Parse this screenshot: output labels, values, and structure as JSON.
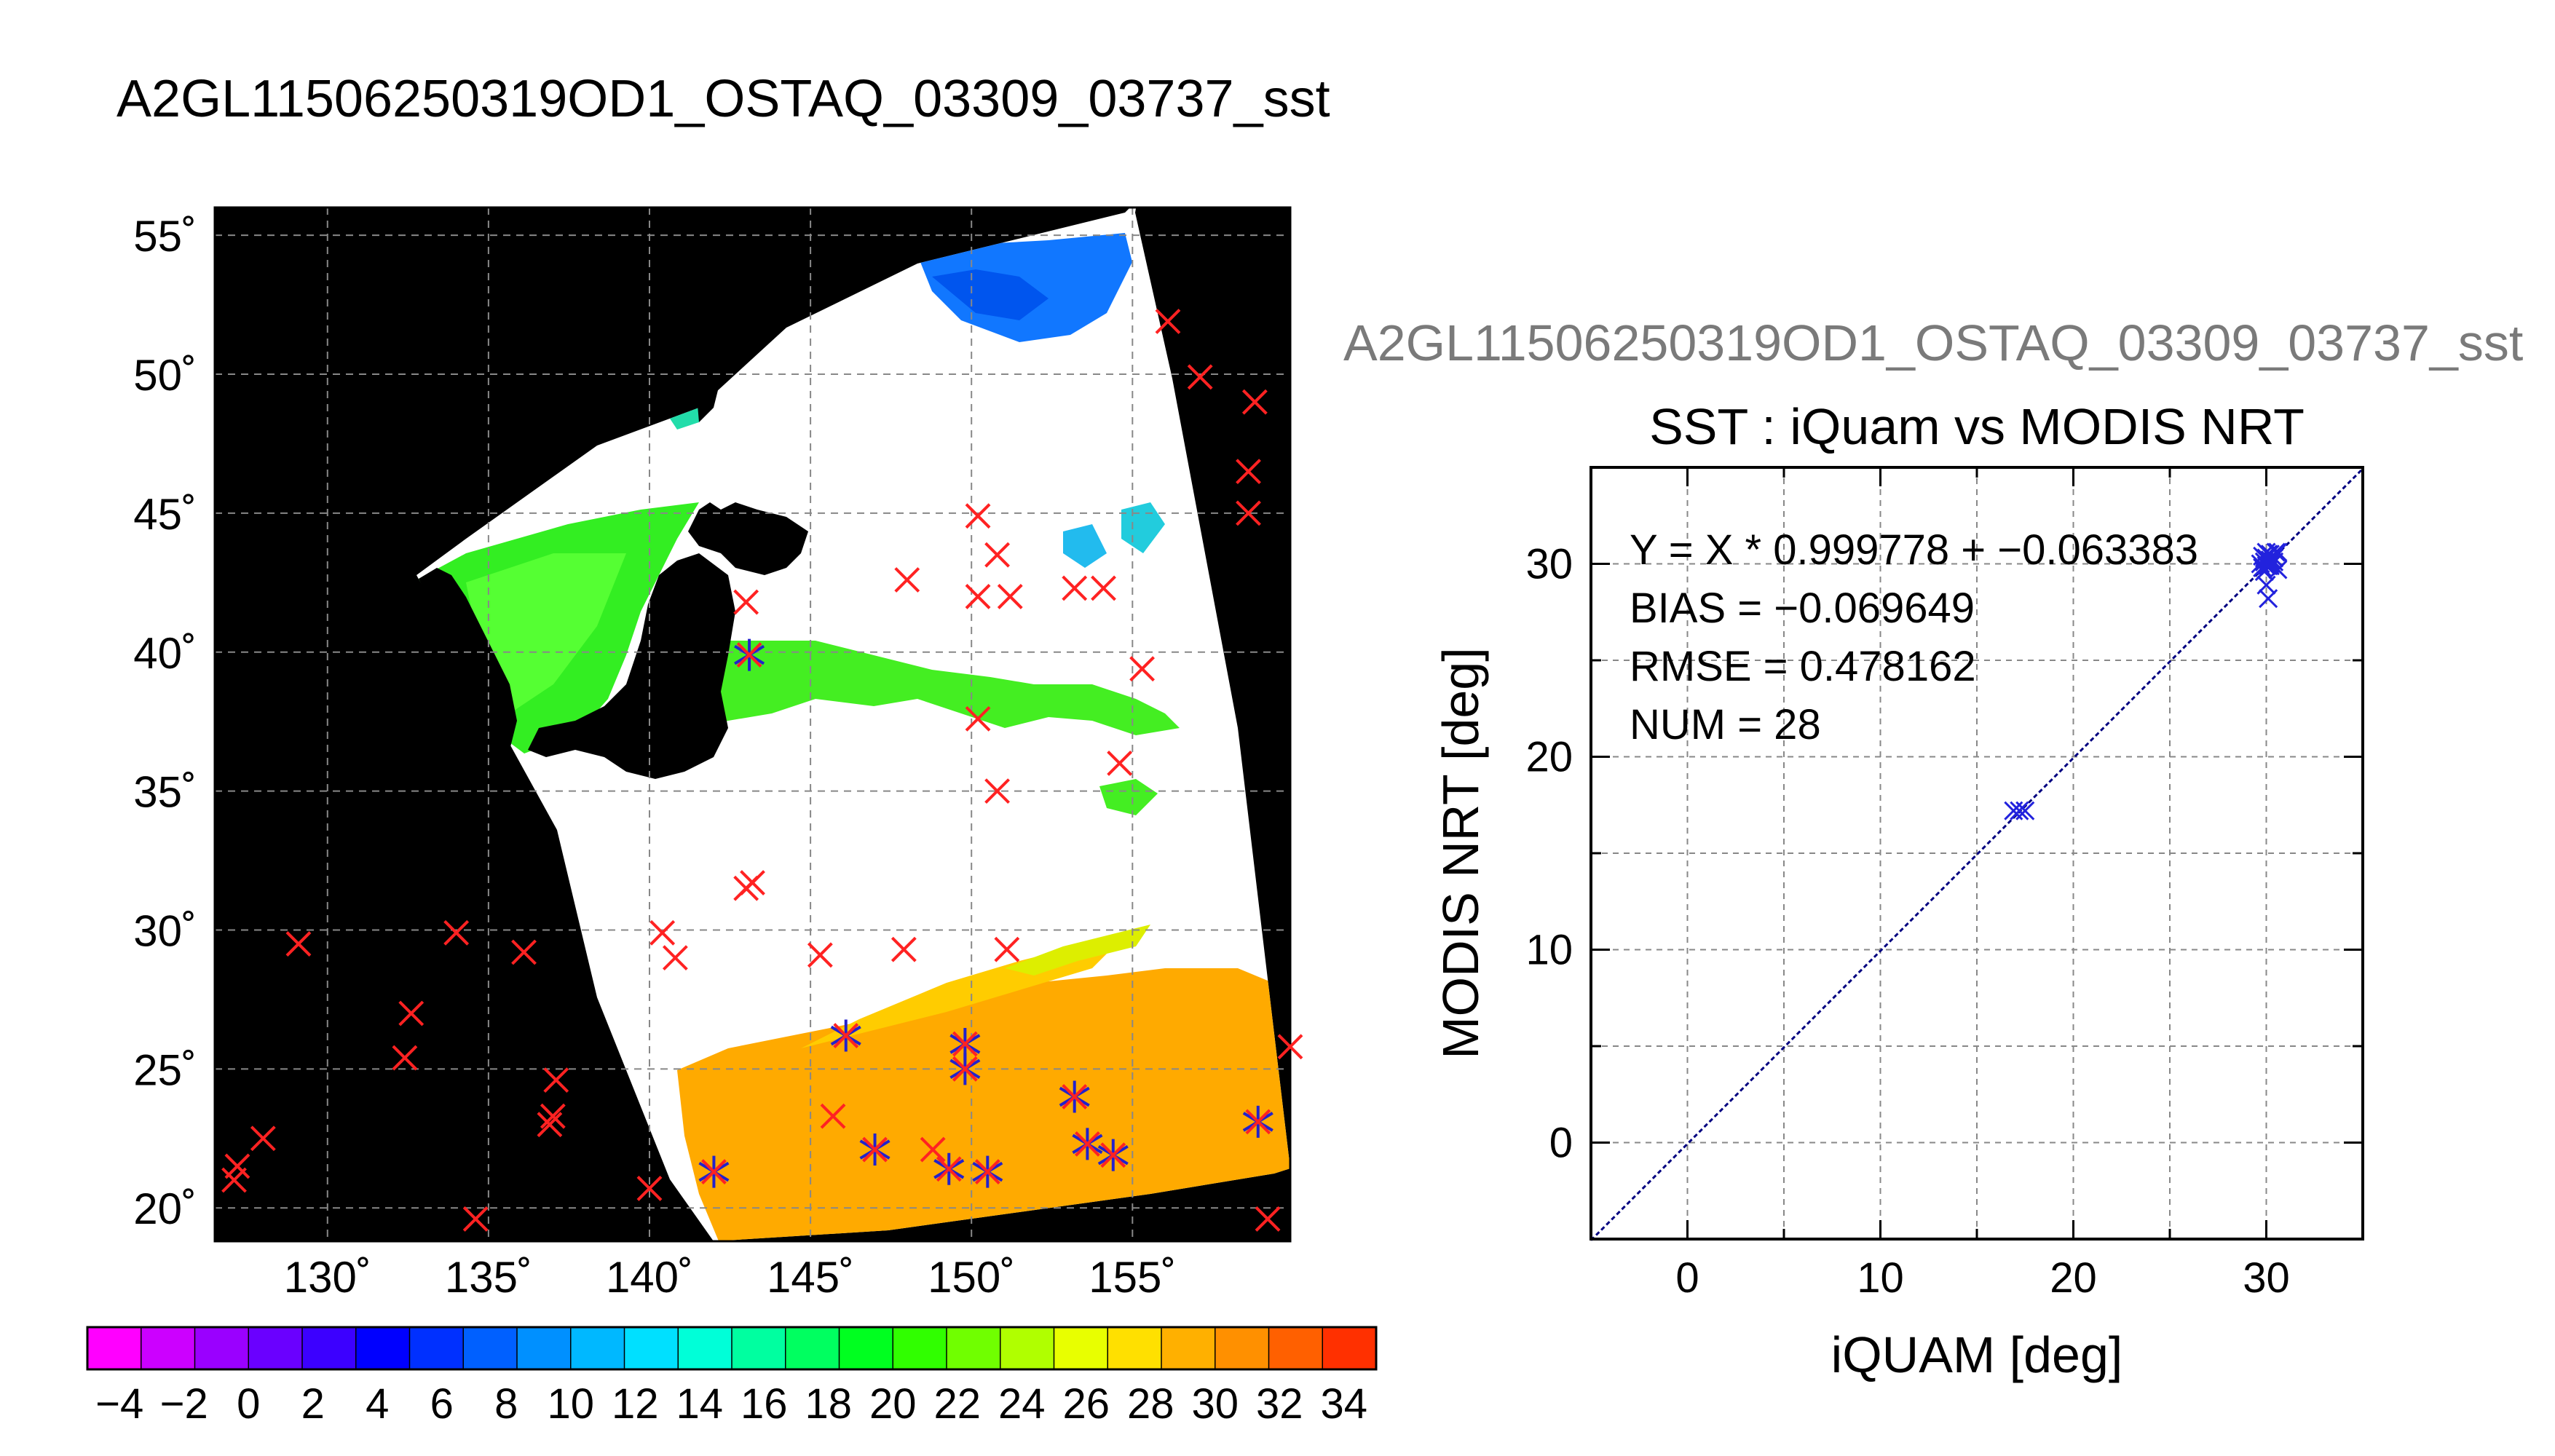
{
  "page": {
    "title": "A2GL11506250319OD1_OSTAQ_03309_03737_sst"
  },
  "map": {
    "lat_labels": [
      "20˚",
      "25˚",
      "30˚",
      "35˚",
      "40˚",
      "45˚",
      "50˚",
      "55˚"
    ],
    "lon_labels": [
      "130˚",
      "135˚",
      "140˚",
      "145˚",
      "150˚",
      "155˚"
    ],
    "lat_values": [
      20,
      25,
      30,
      35,
      40,
      45,
      50,
      55
    ],
    "lon_values": [
      130,
      135,
      140,
      145,
      150,
      155
    ],
    "lon_range": [
      126.5,
      159.9
    ],
    "lat_range": [
      18.8,
      56.0
    ],
    "colorbar": {
      "range": [
        -5,
        35
      ],
      "tick_labels": [
        "−4",
        "−2",
        "0",
        "2",
        "4",
        "6",
        "8",
        "10",
        "12",
        "14",
        "16",
        "18",
        "20",
        "22",
        "24",
        "26",
        "28",
        "30",
        "32",
        "34"
      ],
      "tick_values": [
        -4,
        -2,
        0,
        2,
        4,
        6,
        8,
        10,
        12,
        14,
        16,
        18,
        20,
        22,
        24,
        26,
        28,
        30,
        32,
        34
      ],
      "colors": [
        "#ff00ff",
        "#cc00ff",
        "#9a00ff",
        "#6a00ff",
        "#3c00ff",
        "#0000ff",
        "#0030ff",
        "#0060ff",
        "#0090ff",
        "#00b8ff",
        "#00e0ff",
        "#00ffd8",
        "#00ffa0",
        "#00ff60",
        "#00ff20",
        "#30ff00",
        "#70ff00",
        "#b0ff00",
        "#e8ff00",
        "#ffe000",
        "#ffb000",
        "#ff9000",
        "#ff6000",
        "#ff3000"
      ]
    },
    "markers_red": [
      [
        156.1,
        51.9
      ],
      [
        157.1,
        49.9
      ],
      [
        158.8,
        49.0
      ],
      [
        158.6,
        46.5
      ],
      [
        158.6,
        45.0
      ],
      [
        150.2,
        44.9
      ],
      [
        150.8,
        43.5
      ],
      [
        148.0,
        42.6
      ],
      [
        150.2,
        42.0
      ],
      [
        151.2,
        42.0
      ],
      [
        153.2,
        42.3
      ],
      [
        154.1,
        42.3
      ],
      [
        143.0,
        41.8
      ],
      [
        155.3,
        39.4
      ],
      [
        150.2,
        37.6
      ],
      [
        154.6,
        36.0
      ],
      [
        150.8,
        35.0
      ],
      [
        143.2,
        31.7
      ],
      [
        143.0,
        31.5
      ],
      [
        140.4,
        29.9
      ],
      [
        140.8,
        29.0
      ],
      [
        145.3,
        29.1
      ],
      [
        147.9,
        29.3
      ],
      [
        151.1,
        29.3
      ],
      [
        129.1,
        29.5
      ],
      [
        134.0,
        29.9
      ],
      [
        136.1,
        29.2
      ],
      [
        132.6,
        27.0
      ],
      [
        132.4,
        25.4
      ],
      [
        137.1,
        24.6
      ],
      [
        137.0,
        23.3
      ],
      [
        136.9,
        23.0
      ],
      [
        128.0,
        22.5
      ],
      [
        127.2,
        21.5
      ],
      [
        127.1,
        21.0
      ],
      [
        140.0,
        20.7
      ],
      [
        134.6,
        19.6
      ],
      [
        159.2,
        19.6
      ],
      [
        159.9,
        25.8
      ],
      [
        145.7,
        23.3
      ],
      [
        148.8,
        22.1
      ]
    ],
    "markers_star": [
      [
        143.1,
        39.9
      ],
      [
        142.0,
        21.3
      ],
      [
        146.1,
        26.2
      ],
      [
        147.0,
        22.1
      ],
      [
        149.3,
        21.4
      ],
      [
        149.8,
        25.9
      ],
      [
        149.8,
        25.0
      ],
      [
        150.5,
        21.3
      ],
      [
        153.2,
        24.0
      ],
      [
        153.6,
        22.3
      ],
      [
        154.4,
        21.9
      ],
      [
        158.9,
        23.1
      ]
    ]
  },
  "scatter_header": "A2GL11506250319OD1_OSTAQ_03309_03737_sst",
  "chart_data": {
    "type": "scatter",
    "title": "SST : iQuam vs MODIS NRT",
    "xlabel": "iQUAM [deg]",
    "ylabel": "MODIS NRT [deg]",
    "xlim": [
      -5,
      35
    ],
    "ylim": [
      -5,
      35
    ],
    "x_ticks": [
      0,
      10,
      20,
      30
    ],
    "y_ticks": [
      0,
      10,
      20,
      30
    ],
    "x_tick_labels": [
      "0",
      "10",
      "20",
      "30"
    ],
    "y_tick_labels": [
      "0",
      "10",
      "20",
      "30"
    ],
    "grid": true,
    "fit_line": {
      "slope": 0.999778,
      "intercept": -0.063383
    },
    "annotations": [
      "Y = X * 0.999778 + −0.063383",
      "BIAS = −0.069649",
      "RMSE = 0.478162",
      "NUM = 28"
    ],
    "points": [
      [
        16.9,
        17.2
      ],
      [
        17.2,
        17.2
      ],
      [
        17.5,
        17.2
      ],
      [
        29.8,
        29.8
      ],
      [
        29.9,
        30.1
      ],
      [
        30.0,
        30.3
      ],
      [
        30.1,
        29.9
      ],
      [
        30.2,
        30.2
      ],
      [
        30.3,
        30.4
      ],
      [
        30.4,
        30.1
      ],
      [
        29.7,
        30.0
      ],
      [
        29.9,
        29.6
      ],
      [
        30.0,
        30.6
      ],
      [
        30.1,
        30.5
      ],
      [
        30.2,
        29.9
      ],
      [
        30.3,
        30.0
      ],
      [
        30.5,
        30.6
      ],
      [
        30.6,
        29.7
      ],
      [
        29.9,
        30.3
      ],
      [
        30.0,
        29.9
      ],
      [
        30.1,
        30.2
      ],
      [
        30.2,
        30.0
      ],
      [
        30.0,
        28.9
      ],
      [
        30.1,
        28.2
      ],
      [
        30.4,
        30.3
      ],
      [
        30.6,
        30.6
      ],
      [
        29.8,
        30.4
      ],
      [
        30.2,
        30.5
      ]
    ],
    "colors": {
      "points": "#2222dd",
      "fit_line": "#000080"
    }
  }
}
